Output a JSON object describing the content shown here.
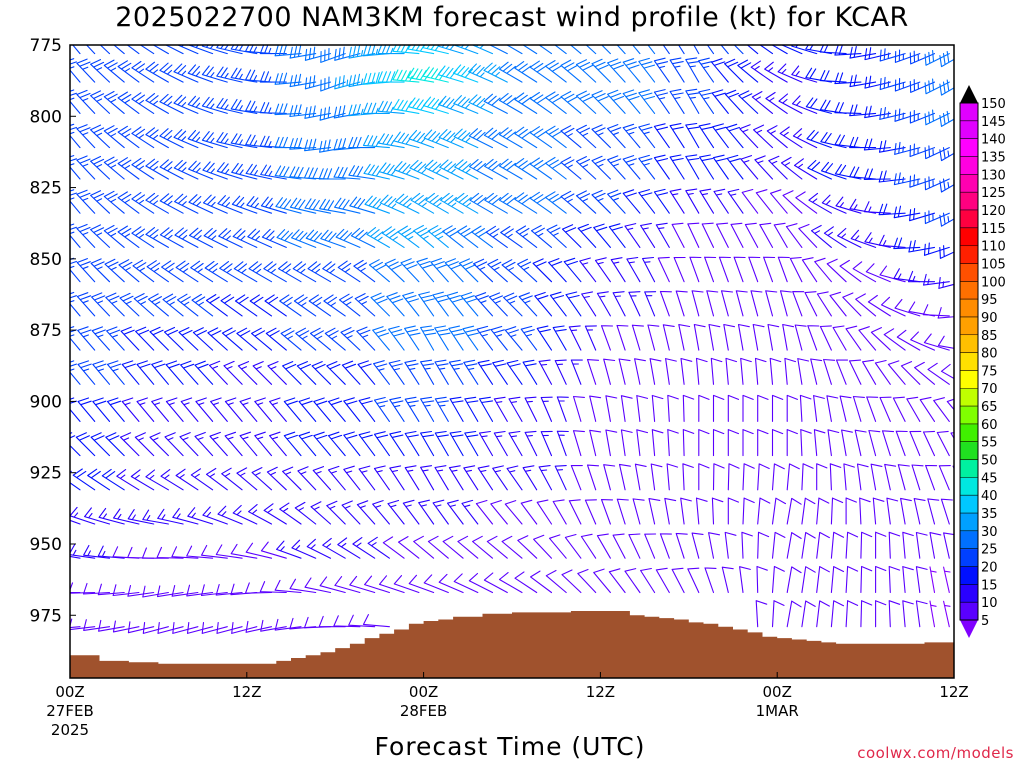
{
  "title": "2025022700 NAM3KM forecast wind profile (kt) for KCAR",
  "xlabel": "Forecast Time (UTC)",
  "watermark": "coolwx.com/models",
  "colors": {
    "terrain": "#a0522d",
    "axis": "#000000",
    "background": "#ffffff",
    "colorbar": [
      "#8000ff",
      "#5a00ff",
      "#2a00ff",
      "#0010ff",
      "#0040ff",
      "#0070ff",
      "#00a0ff",
      "#00c8ff",
      "#00e8e0",
      "#00f0a0",
      "#20e020",
      "#40f000",
      "#80ff00",
      "#c0ff00",
      "#ffff00",
      "#ffe000",
      "#ffc000",
      "#ffa000",
      "#ff8c00",
      "#ff7000",
      "#ff5000",
      "#ff2000",
      "#ff0000",
      "#ff0040",
      "#ff0080",
      "#ff00b0",
      "#ff00e0",
      "#ff00ff",
      "#e000ff"
    ]
  },
  "chart_data": {
    "type": "wind-barb time-height profile",
    "title": "2025022700 NAM3KM forecast wind profile (kt) for KCAR",
    "xlabel": "Forecast Time (UTC)",
    "ylabel": "",
    "units": "kt",
    "y_axis": {
      "type": "pressure (mb)",
      "ticks": [
        775,
        800,
        825,
        850,
        875,
        900,
        925,
        950,
        975
      ],
      "range": [
        775,
        997
      ],
      "inverted": true
    },
    "x_axis": {
      "range_hours": [
        0,
        60
      ],
      "ticks": [
        {
          "hour": 0,
          "label": "00Z",
          "date": "27FEB",
          "year": "2025"
        },
        {
          "hour": 12,
          "label": "12Z",
          "date": "",
          "year": ""
        },
        {
          "hour": 24,
          "label": "00Z",
          "date": "28FEB",
          "year": ""
        },
        {
          "hour": 36,
          "label": "12Z",
          "date": "",
          "year": ""
        },
        {
          "hour": 48,
          "label": "00Z",
          "date": "1MAR",
          "year": ""
        },
        {
          "hour": 60,
          "label": "12Z",
          "date": "",
          "year": ""
        }
      ]
    },
    "colorbar": {
      "labels": [
        5,
        10,
        15,
        20,
        25,
        30,
        35,
        40,
        45,
        50,
        55,
        60,
        65,
        70,
        75,
        80,
        85,
        90,
        95,
        100,
        105,
        110,
        115,
        120,
        125,
        130,
        135,
        140,
        145,
        150
      ]
    },
    "barb_levels_mb": [
      778,
      788,
      799,
      811,
      822,
      834,
      846,
      858,
      870,
      882,
      894,
      907,
      919,
      931,
      943,
      955,
      967,
      979
    ],
    "surface_pressure": {
      "hours": [
        0,
        2,
        4,
        6,
        8,
        10,
        12,
        14,
        15,
        16,
        17,
        18,
        19,
        20,
        21,
        22,
        23,
        24,
        25,
        26,
        28,
        30,
        32,
        34,
        36,
        38,
        39,
        40,
        41,
        42,
        43,
        44,
        45,
        46,
        47,
        48,
        49,
        50,
        51,
        52,
        54,
        56,
        58,
        60
      ],
      "mb": [
        989,
        991,
        991.5,
        992,
        992,
        992,
        992,
        991,
        990,
        989,
        988,
        986.5,
        985,
        983,
        981.5,
        980,
        978,
        977,
        976.5,
        975.5,
        974.5,
        974,
        974,
        973.5,
        973.5,
        975,
        975.5,
        976,
        976.5,
        977.5,
        978,
        979,
        980,
        981,
        982.5,
        983,
        983.5,
        984,
        984.5,
        985,
        985,
        985,
        984.5,
        984.5
      ]
    },
    "wind_speed_kt": {
      "columns_hours": [
        0,
        6,
        12,
        18,
        24,
        30,
        36,
        42,
        48,
        54,
        60
      ],
      "rows": [
        [
          25,
          25,
          25,
          30,
          40,
          30,
          30,
          25,
          20,
          20,
          30
        ],
        [
          25,
          25,
          25,
          30,
          45,
          30,
          30,
          25,
          15,
          20,
          30
        ],
        [
          25,
          25,
          25,
          30,
          40,
          30,
          30,
          25,
          15,
          20,
          30
        ],
        [
          25,
          25,
          25,
          30,
          35,
          30,
          25,
          20,
          15,
          20,
          25
        ],
        [
          25,
          25,
          25,
          30,
          35,
          30,
          25,
          20,
          15,
          20,
          25
        ],
        [
          25,
          25,
          25,
          30,
          35,
          30,
          25,
          15,
          10,
          15,
          25
        ],
        [
          25,
          25,
          25,
          30,
          35,
          25,
          20,
          10,
          10,
          15,
          20
        ],
        [
          25,
          25,
          25,
          25,
          30,
          25,
          15,
          10,
          10,
          10,
          15
        ],
        [
          25,
          25,
          20,
          25,
          30,
          25,
          15,
          10,
          10,
          10,
          10
        ],
        [
          25,
          20,
          20,
          25,
          30,
          25,
          10,
          10,
          10,
          10,
          10
        ],
        [
          25,
          20,
          15,
          20,
          25,
          20,
          10,
          10,
          10,
          10,
          10
        ],
        [
          20,
          15,
          15,
          20,
          25,
          15,
          10,
          10,
          10,
          10,
          10
        ],
        [
          20,
          15,
          15,
          20,
          20,
          15,
          10,
          10,
          10,
          10,
          10
        ],
        [
          20,
          15,
          15,
          15,
          15,
          15,
          10,
          10,
          10,
          10,
          10
        ],
        [
          15,
          15,
          15,
          15,
          15,
          10,
          10,
          10,
          10,
          10,
          10
        ],
        [
          15,
          10,
          10,
          15,
          10,
          10,
          10,
          10,
          10,
          10,
          10
        ],
        [
          10,
          10,
          10,
          10,
          10,
          10,
          10,
          10,
          10,
          10,
          5
        ],
        [
          10,
          10,
          10,
          10,
          10,
          10,
          10,
          10,
          10,
          10,
          5
        ]
      ]
    },
    "wind_from_deg": {
      "columns_hours": [
        0,
        6,
        12,
        18,
        24,
        30,
        36,
        42,
        48,
        54,
        60
      ],
      "rows": [
        [
          320,
          300,
          280,
          250,
          280,
          300,
          315,
          330,
          300,
          260,
          240
        ],
        [
          320,
          300,
          280,
          250,
          280,
          300,
          315,
          330,
          300,
          260,
          240
        ],
        [
          320,
          300,
          280,
          255,
          285,
          300,
          315,
          330,
          305,
          265,
          240
        ],
        [
          320,
          300,
          280,
          260,
          290,
          300,
          315,
          330,
          310,
          270,
          240
        ],
        [
          320,
          300,
          285,
          270,
          295,
          300,
          315,
          330,
          315,
          275,
          240
        ],
        [
          320,
          300,
          290,
          280,
          300,
          300,
          315,
          330,
          320,
          280,
          240
        ],
        [
          320,
          300,
          295,
          290,
          310,
          305,
          320,
          335,
          330,
          290,
          245
        ],
        [
          320,
          305,
          300,
          300,
          320,
          310,
          325,
          340,
          340,
          300,
          255
        ],
        [
          320,
          310,
          305,
          305,
          325,
          315,
          330,
          345,
          345,
          310,
          265
        ],
        [
          320,
          315,
          310,
          310,
          330,
          320,
          340,
          350,
          350,
          320,
          280
        ],
        [
          320,
          320,
          315,
          315,
          330,
          325,
          345,
          355,
          355,
          330,
          300
        ],
        [
          320,
          320,
          320,
          320,
          330,
          330,
          350,
          0,
          0,
          340,
          320
        ],
        [
          315,
          315,
          320,
          320,
          330,
          330,
          350,
          0,
          0,
          345,
          330
        ],
        [
          305,
          300,
          310,
          320,
          330,
          325,
          345,
          0,
          5,
          350,
          335
        ],
        [
          290,
          280,
          295,
          315,
          325,
          320,
          340,
          355,
          10,
          355,
          340
        ],
        [
          280,
          270,
          280,
          300,
          310,
          310,
          330,
          345,
          10,
          0,
          345
        ],
        [
          270,
          260,
          265,
          285,
          290,
          300,
          320,
          335,
          10,
          0,
          345
        ],
        [
          265,
          255,
          255,
          270,
          280,
          290,
          310,
          330,
          10,
          0,
          345
        ]
      ]
    }
  }
}
